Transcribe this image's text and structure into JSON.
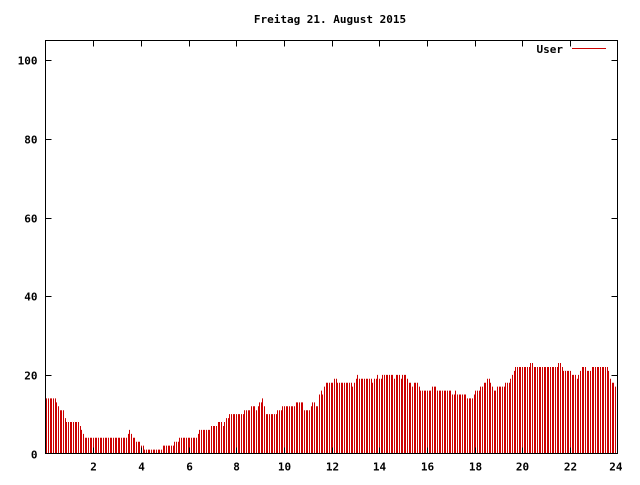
{
  "chart_data": {
    "type": "bar",
    "title": "Freitag 21. August 2015",
    "xlabel": "",
    "ylabel": "",
    "xlim": [
      0,
      24
    ],
    "ylim": [
      0,
      105
    ],
    "x_ticks": [
      2,
      4,
      6,
      8,
      10,
      12,
      14,
      16,
      18,
      20,
      22,
      24
    ],
    "y_ticks": [
      0,
      20,
      40,
      60,
      80,
      100
    ],
    "legend_position": "top-right",
    "grid": false,
    "colors": {
      "series": "#cc0000",
      "axis": "#000000",
      "background": "#ffffff"
    },
    "series": [
      {
        "name": "User",
        "values": [
          14,
          14,
          14,
          14,
          14,
          14,
          13,
          12,
          11,
          11,
          11,
          9,
          8,
          8,
          8,
          8,
          8,
          8,
          8,
          8,
          7,
          6,
          5,
          4,
          4,
          4,
          4,
          4,
          4,
          4,
          4,
          4,
          4,
          4,
          4,
          4,
          4,
          4,
          4,
          4,
          4,
          4,
          4,
          4,
          4,
          4,
          4,
          4,
          4,
          5,
          6,
          5,
          4,
          4,
          3,
          3,
          3,
          2,
          2,
          1,
          1,
          1,
          1,
          1,
          1,
          1,
          1,
          1,
          1,
          1,
          2,
          2,
          2,
          2,
          2,
          2,
          2,
          3,
          3,
          3,
          4,
          4,
          4,
          4,
          4,
          4,
          4,
          4,
          4,
          4,
          4,
          5,
          6,
          6,
          6,
          6,
          6,
          6,
          6,
          7,
          7,
          7,
          7,
          8,
          8,
          8,
          7,
          8,
          9,
          9,
          10,
          10,
          10,
          10,
          10,
          10,
          10,
          10,
          10,
          11,
          11,
          11,
          11,
          12,
          12,
          12,
          11,
          12,
          13,
          13,
          14,
          12,
          10,
          10,
          10,
          10,
          10,
          10,
          10,
          11,
          11,
          11,
          12,
          12,
          12,
          12,
          12,
          12,
          12,
          12,
          13,
          13,
          13,
          13,
          13,
          11,
          11,
          11,
          11,
          12,
          13,
          13,
          12,
          12,
          15,
          16,
          15,
          17,
          18,
          18,
          18,
          18,
          18,
          19,
          19,
          18,
          18,
          18,
          18,
          18,
          18,
          18,
          18,
          18,
          17,
          18,
          19,
          20,
          19,
          19,
          19,
          19,
          19,
          19,
          19,
          19,
          18,
          19,
          19,
          20,
          19,
          19,
          20,
          20,
          20,
          20,
          20,
          20,
          20,
          19,
          20,
          20,
          20,
          19,
          20,
          20,
          20,
          19,
          18,
          18,
          17,
          18,
          18,
          18,
          17,
          16,
          16,
          16,
          16,
          16,
          16,
          16,
          17,
          17,
          17,
          16,
          16,
          16,
          16,
          16,
          16,
          16,
          16,
          16,
          15,
          15,
          16,
          15,
          15,
          15,
          15,
          15,
          15,
          14,
          14,
          14,
          14,
          15,
          16,
          16,
          16,
          17,
          17,
          18,
          18,
          19,
          19,
          18,
          17,
          16,
          16,
          17,
          17,
          17,
          17,
          17,
          18,
          18,
          18,
          19,
          20,
          21,
          22,
          22,
          22,
          22,
          22,
          22,
          22,
          22,
          22,
          23,
          23,
          22,
          22,
          22,
          22,
          22,
          22,
          22,
          22,
          22,
          22,
          22,
          22,
          22,
          22,
          22,
          23,
          23,
          22,
          21,
          21,
          21,
          21,
          21,
          20,
          20,
          20,
          19,
          20,
          21,
          22,
          22,
          22,
          21,
          21,
          21,
          22,
          22,
          22,
          22,
          22,
          22,
          22,
          22,
          22,
          22,
          21,
          19,
          18,
          18,
          17,
          14
        ]
      }
    ]
  }
}
